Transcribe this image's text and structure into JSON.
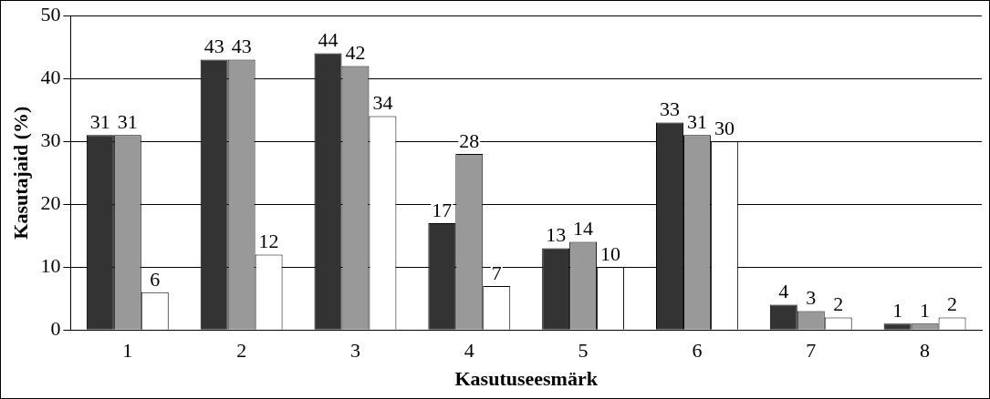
{
  "chart_data": {
    "type": "bar",
    "xlabel": "Kasutuseesmärk",
    "ylabel": "Kasutajaid (%)",
    "categories": [
      "1",
      "2",
      "3",
      "4",
      "5",
      "6",
      "7",
      "8"
    ],
    "series": [
      {
        "color": "#333333",
        "values": [
          31,
          43,
          44,
          17,
          13,
          33,
          4,
          1
        ]
      },
      {
        "color": "#999999",
        "values": [
          31,
          43,
          42,
          28,
          14,
          31,
          3,
          1
        ]
      },
      {
        "color": "#ffffff",
        "values": [
          6,
          12,
          34,
          7,
          10,
          30,
          2,
          2
        ]
      }
    ],
    "ylim": [
      0,
      50
    ],
    "yticks": [
      0,
      10,
      20,
      30,
      40,
      50
    ],
    "grid": "y",
    "legend": false,
    "data_labels": true
  }
}
